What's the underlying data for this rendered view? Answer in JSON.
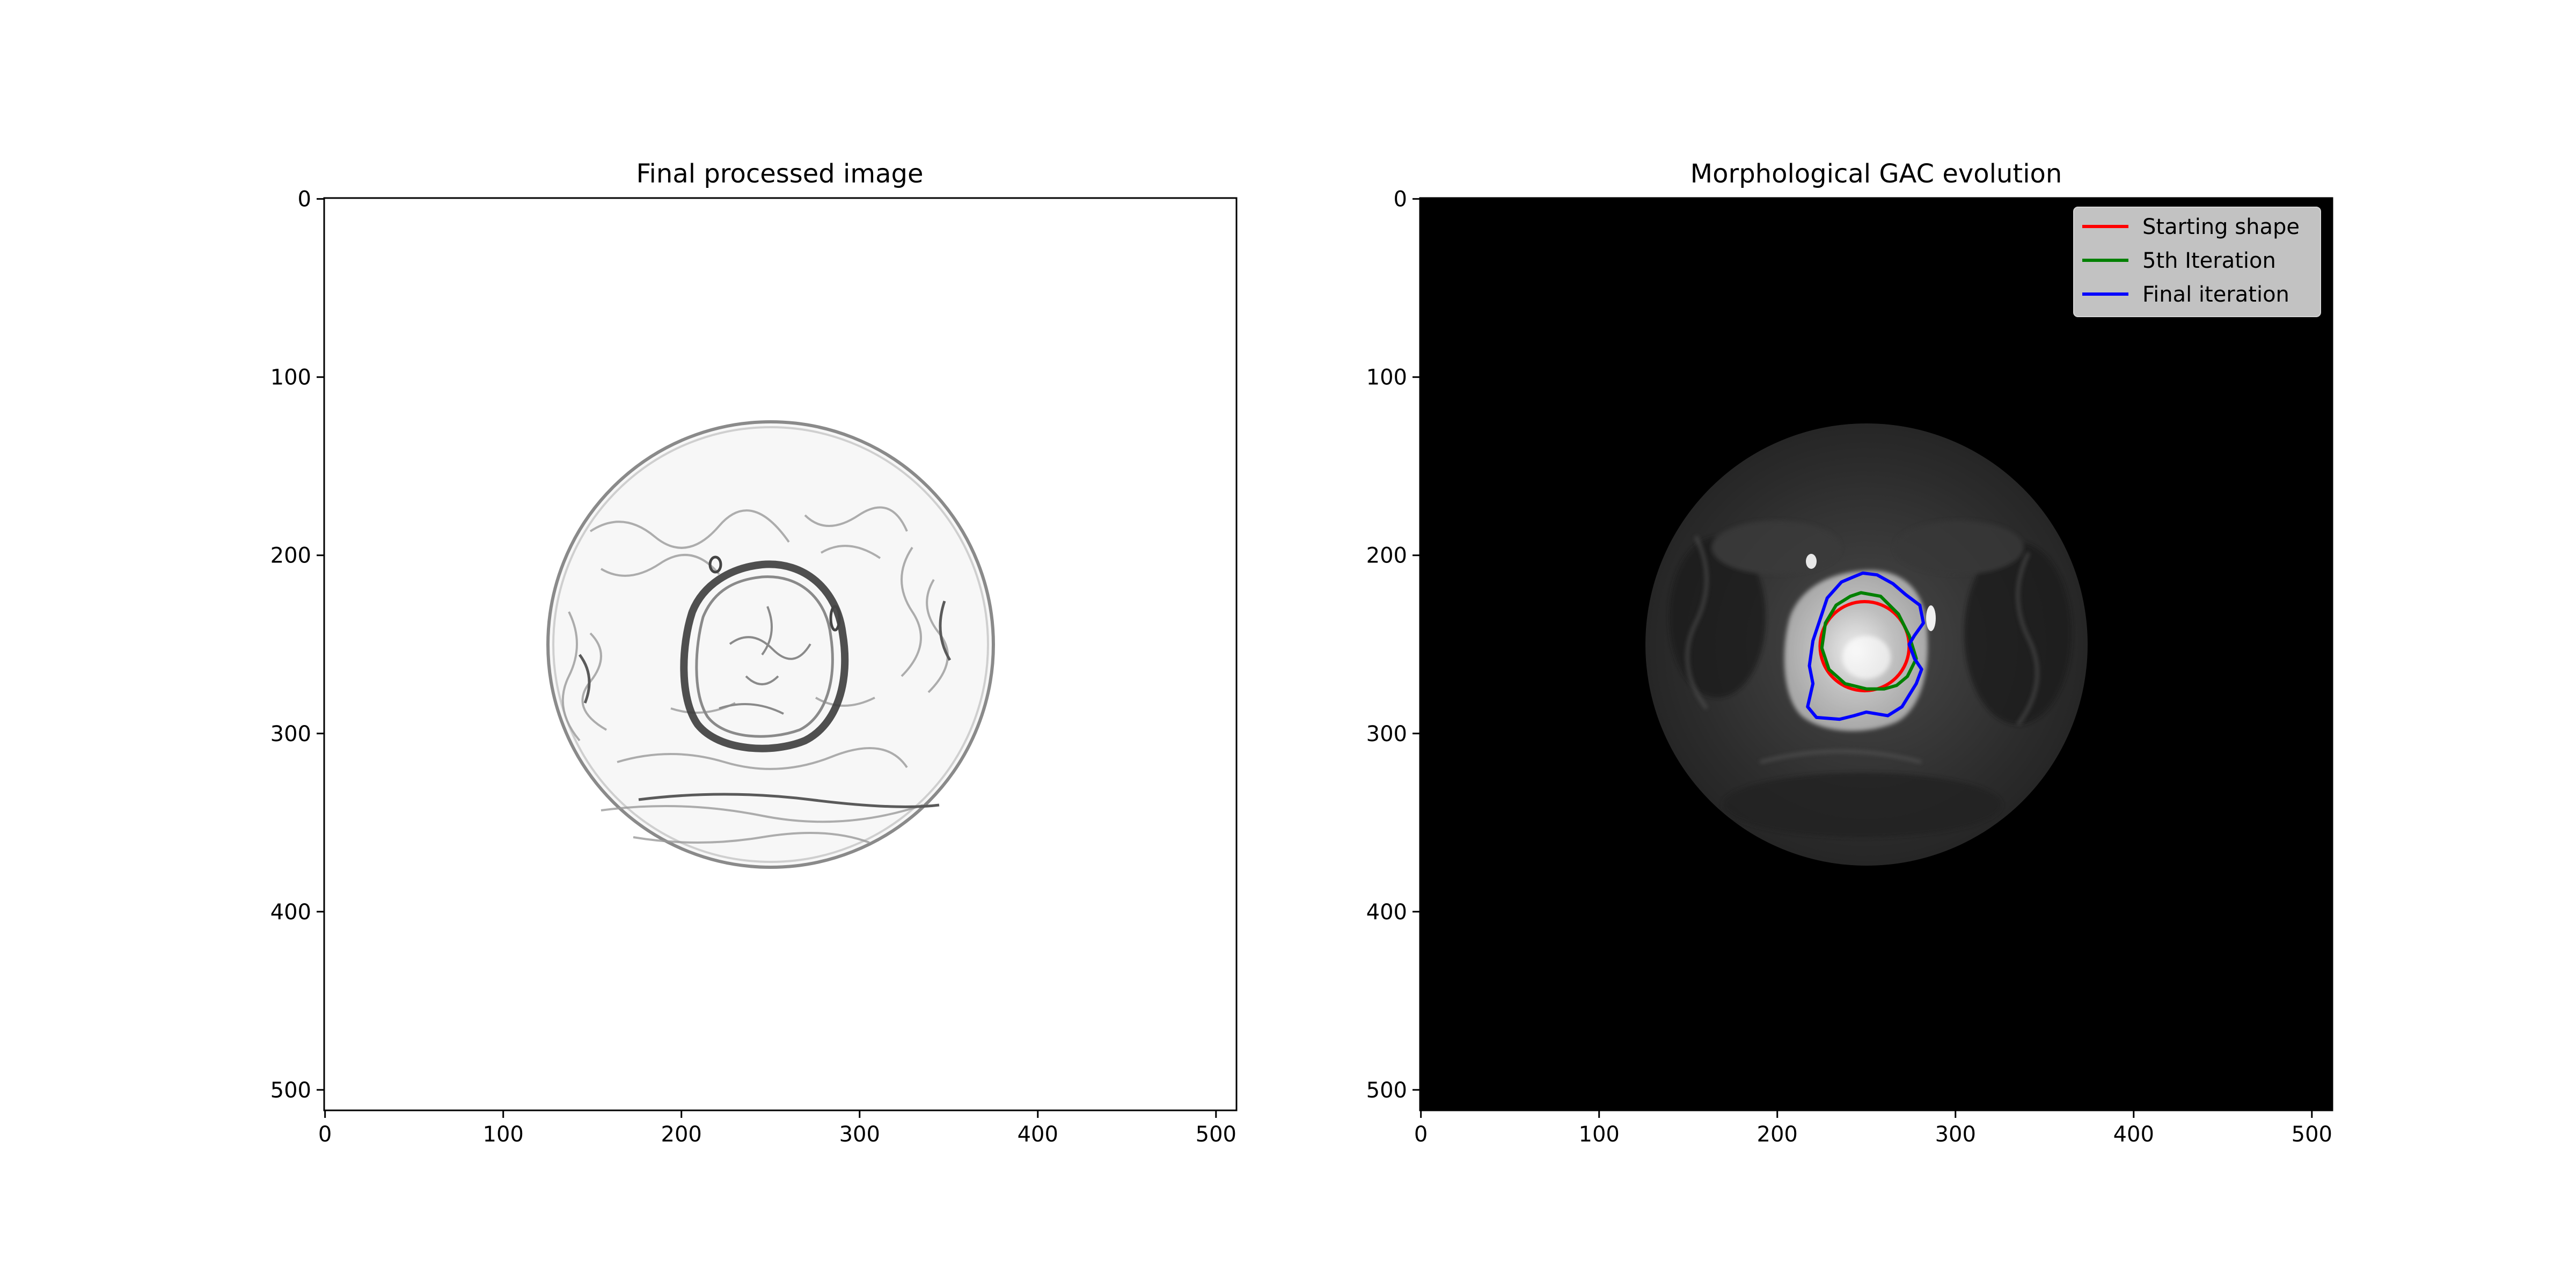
{
  "chart_data": [
    {
      "type": "image",
      "title": "Final processed image",
      "xticks": [
        0,
        100,
        200,
        300,
        400,
        500
      ],
      "yticks": [
        0,
        100,
        200,
        300,
        400,
        500
      ],
      "xlim": [
        -0.5,
        511.5
      ],
      "ylim": [
        511.5,
        -0.5
      ],
      "image_shape": [
        512,
        512
      ],
      "colormap": "gray",
      "background": "#ffffff",
      "content": "inverted gradient magnitude, circular field of view centered ~(256,256), radius ~125"
    },
    {
      "type": "image",
      "title": "Morphological GAC evolution",
      "xticks": [
        0,
        100,
        200,
        300,
        400,
        500
      ],
      "yticks": [
        0,
        100,
        200,
        300,
        400,
        500
      ],
      "xlim": [
        -0.5,
        511.5
      ],
      "ylim": [
        511.5,
        -0.5
      ],
      "image_shape": [
        512,
        512
      ],
      "colormap": "gray",
      "background": "#000000",
      "legend_position": "top-right",
      "series": [
        {
          "name": "Starting shape",
          "color": "#ff0000",
          "center": [
            249,
            251
          ],
          "radius": 25
        },
        {
          "name": "5th Iteration",
          "color": "#008000",
          "points": [
            [
              247,
              221
            ],
            [
              258,
              223
            ],
            [
              268,
              233
            ],
            [
              274,
              245
            ],
            [
              278,
              258
            ],
            [
              273,
              268
            ],
            [
              267,
              273
            ],
            [
              260,
              275
            ],
            [
              250,
              275
            ],
            [
              238,
              272
            ],
            [
              229,
              264
            ],
            [
              225,
              252
            ],
            [
              227,
              238
            ],
            [
              233,
              228
            ],
            [
              241,
              223
            ]
          ]
        },
        {
          "name": "Final iteration",
          "color": "#0000ff",
          "points": [
            [
              248,
              210
            ],
            [
              256,
              211
            ],
            [
              265,
              216
            ],
            [
              272,
              222
            ],
            [
              280,
              228
            ],
            [
              282,
              238
            ],
            [
              277,
              245
            ],
            [
              274,
              250
            ],
            [
              277,
              258
            ],
            [
              281,
              264
            ],
            [
              278,
              272
            ],
            [
              270,
              285
            ],
            [
              262,
              290
            ],
            [
              250,
              288
            ],
            [
              243,
              290
            ],
            [
              235,
              292
            ],
            [
              222,
              291
            ],
            [
              217,
              285
            ],
            [
              220,
              272
            ],
            [
              218,
              262
            ],
            [
              220,
              248
            ],
            [
              224,
              236
            ],
            [
              228,
              224
            ],
            [
              236,
              215
            ],
            [
              243,
              212
            ]
          ]
        }
      ]
    }
  ]
}
